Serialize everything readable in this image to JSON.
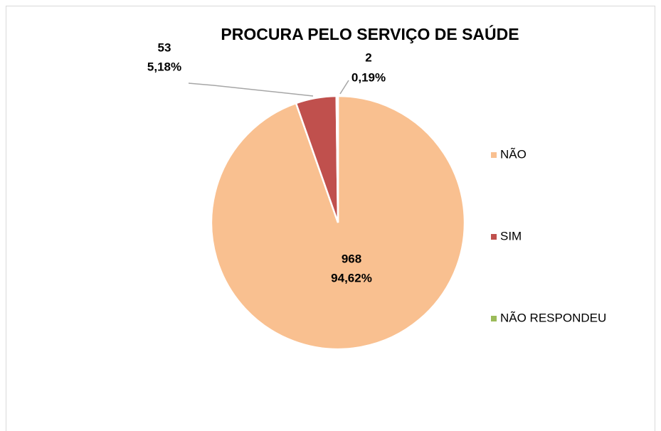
{
  "chart_data": {
    "type": "pie",
    "title": "PROCURA PELO SERVIÇO DE SAÚDE",
    "categories": [
      "NÃO",
      "SIM",
      "NÃO RESPONDEU"
    ],
    "values": [
      968,
      53,
      2
    ],
    "percentages": [
      94.62,
      5.18,
      0.19
    ],
    "percentage_labels": [
      "94,62%",
      "5,18%",
      "0,19%"
    ],
    "colors": [
      "#f9c090",
      "#c0504d",
      "#9bbb59"
    ],
    "legend": "right"
  }
}
